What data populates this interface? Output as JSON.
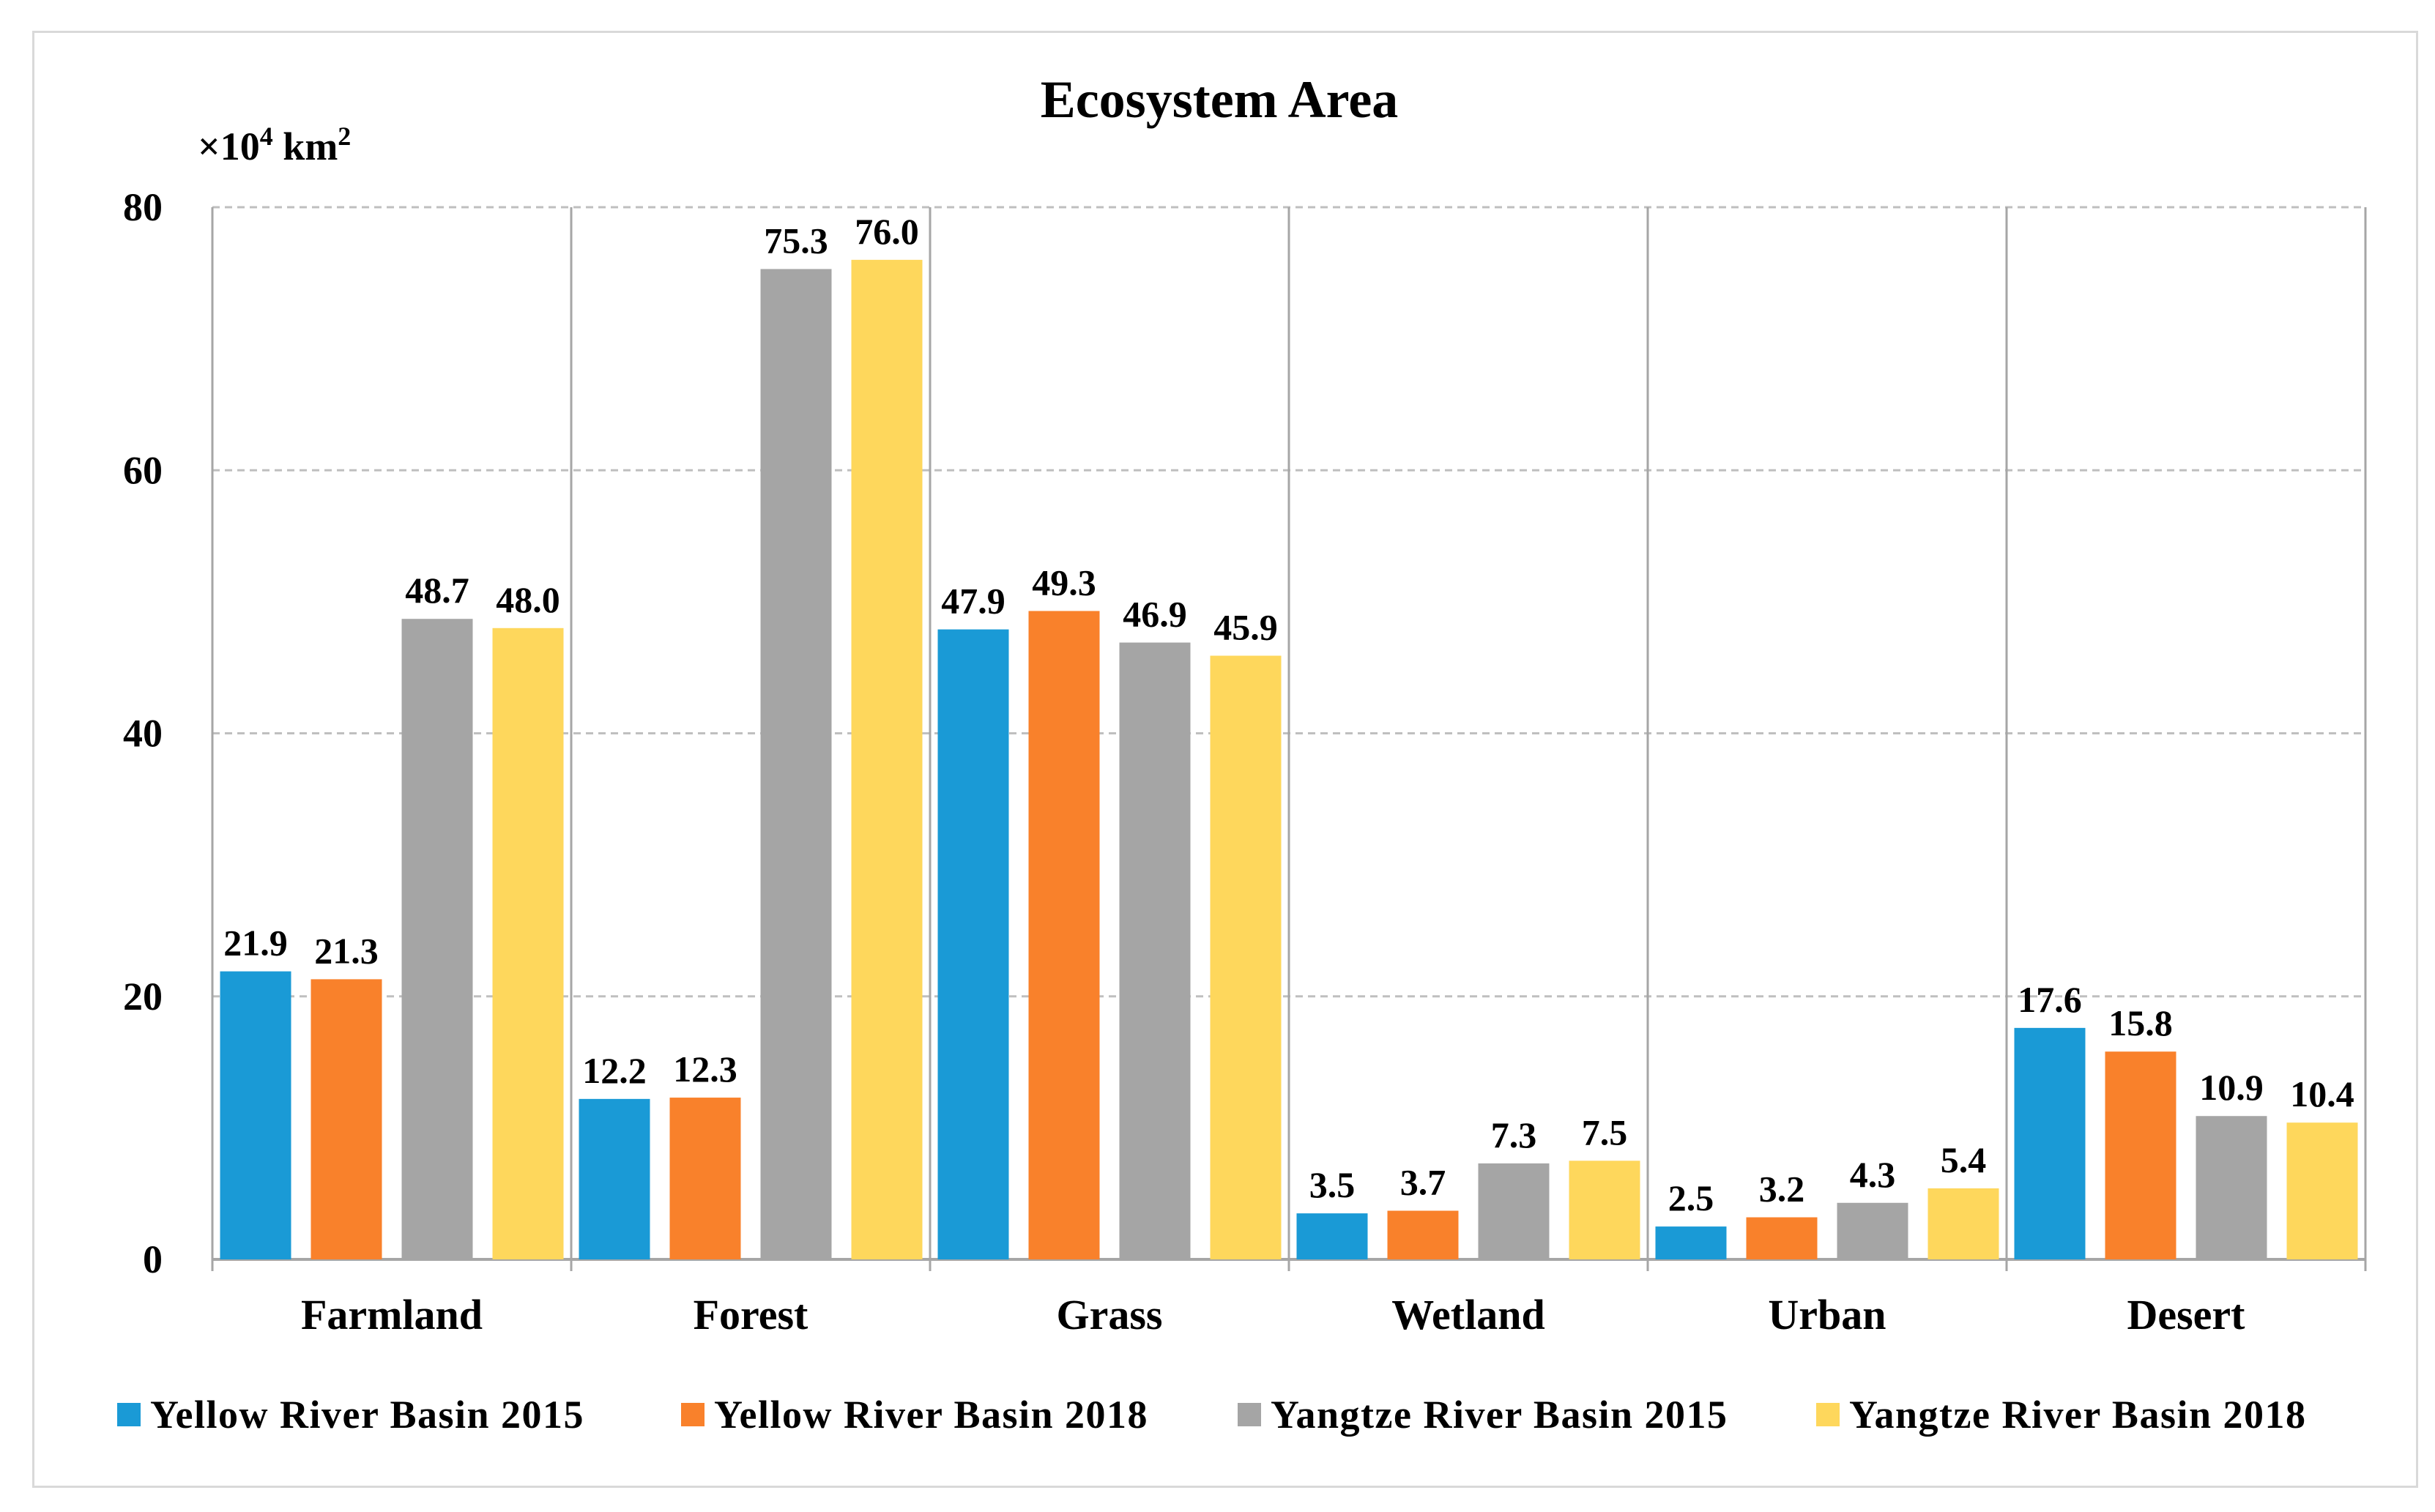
{
  "chart_data": {
    "type": "bar",
    "title": "Ecosystem Area",
    "ylabel_parts": {
      "base": "×10",
      "exp": "4",
      "unit": " km",
      "unit_exp": "2"
    },
    "xlabel": "",
    "ylim": [
      0,
      80
    ],
    "yticks": [
      0,
      20,
      40,
      60,
      80
    ],
    "categories": [
      "Farmland",
      "Forest",
      "Grass",
      "Wetland",
      "Urban",
      "Desert"
    ],
    "series": [
      {
        "name": "Yellow River Basin 2015",
        "color": "#1a9ad6",
        "values": [
          21.9,
          12.2,
          47.9,
          3.5,
          2.5,
          17.6
        ]
      },
      {
        "name": "Yellow River Basin 2018",
        "color": "#f9812b",
        "values": [
          21.3,
          12.3,
          49.3,
          3.7,
          3.2,
          15.8
        ]
      },
      {
        "name": "Yangtze River Basin 2015",
        "color": "#a5a5a5",
        "values": [
          48.7,
          75.3,
          46.9,
          7.3,
          4.3,
          10.9
        ]
      },
      {
        "name": "Yangtze River Basin 2018",
        "color": "#fed75c",
        "values": [
          48.0,
          76.0,
          45.9,
          7.5,
          5.4,
          10.4
        ]
      }
    ],
    "data_label_decimals": 1,
    "grid": true,
    "legend_position": "bottom"
  }
}
